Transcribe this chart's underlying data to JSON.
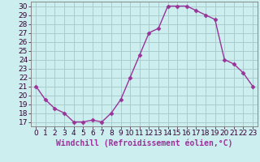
{
  "x": [
    0,
    1,
    2,
    3,
    4,
    5,
    6,
    7,
    8,
    9,
    10,
    11,
    12,
    13,
    14,
    15,
    16,
    17,
    18,
    19,
    20,
    21,
    22,
    23
  ],
  "y": [
    21,
    19.5,
    18.5,
    18,
    17,
    17,
    17.2,
    17,
    18,
    19.5,
    22,
    24.5,
    27,
    27.5,
    30,
    30,
    30,
    29.5,
    29,
    28.5,
    24,
    23.5,
    22.5,
    21
  ],
  "line_color": "#993399",
  "marker": "D",
  "marker_size": 2.5,
  "bg_color": "#cceeee",
  "grid_color": "#aacccc",
  "xlabel": "Windchill (Refroidissement éolien,°C)",
  "ylim": [
    17,
    30
  ],
  "xlim": [
    -0.5,
    23.5
  ],
  "yticks": [
    17,
    18,
    19,
    20,
    21,
    22,
    23,
    24,
    25,
    26,
    27,
    28,
    29,
    30
  ],
  "xticks": [
    0,
    1,
    2,
    3,
    4,
    5,
    6,
    7,
    8,
    9,
    10,
    11,
    12,
    13,
    14,
    15,
    16,
    17,
    18,
    19,
    20,
    21,
    22,
    23
  ],
  "xlabel_fontsize": 7,
  "tick_fontsize": 6.5,
  "line_width": 1.0
}
